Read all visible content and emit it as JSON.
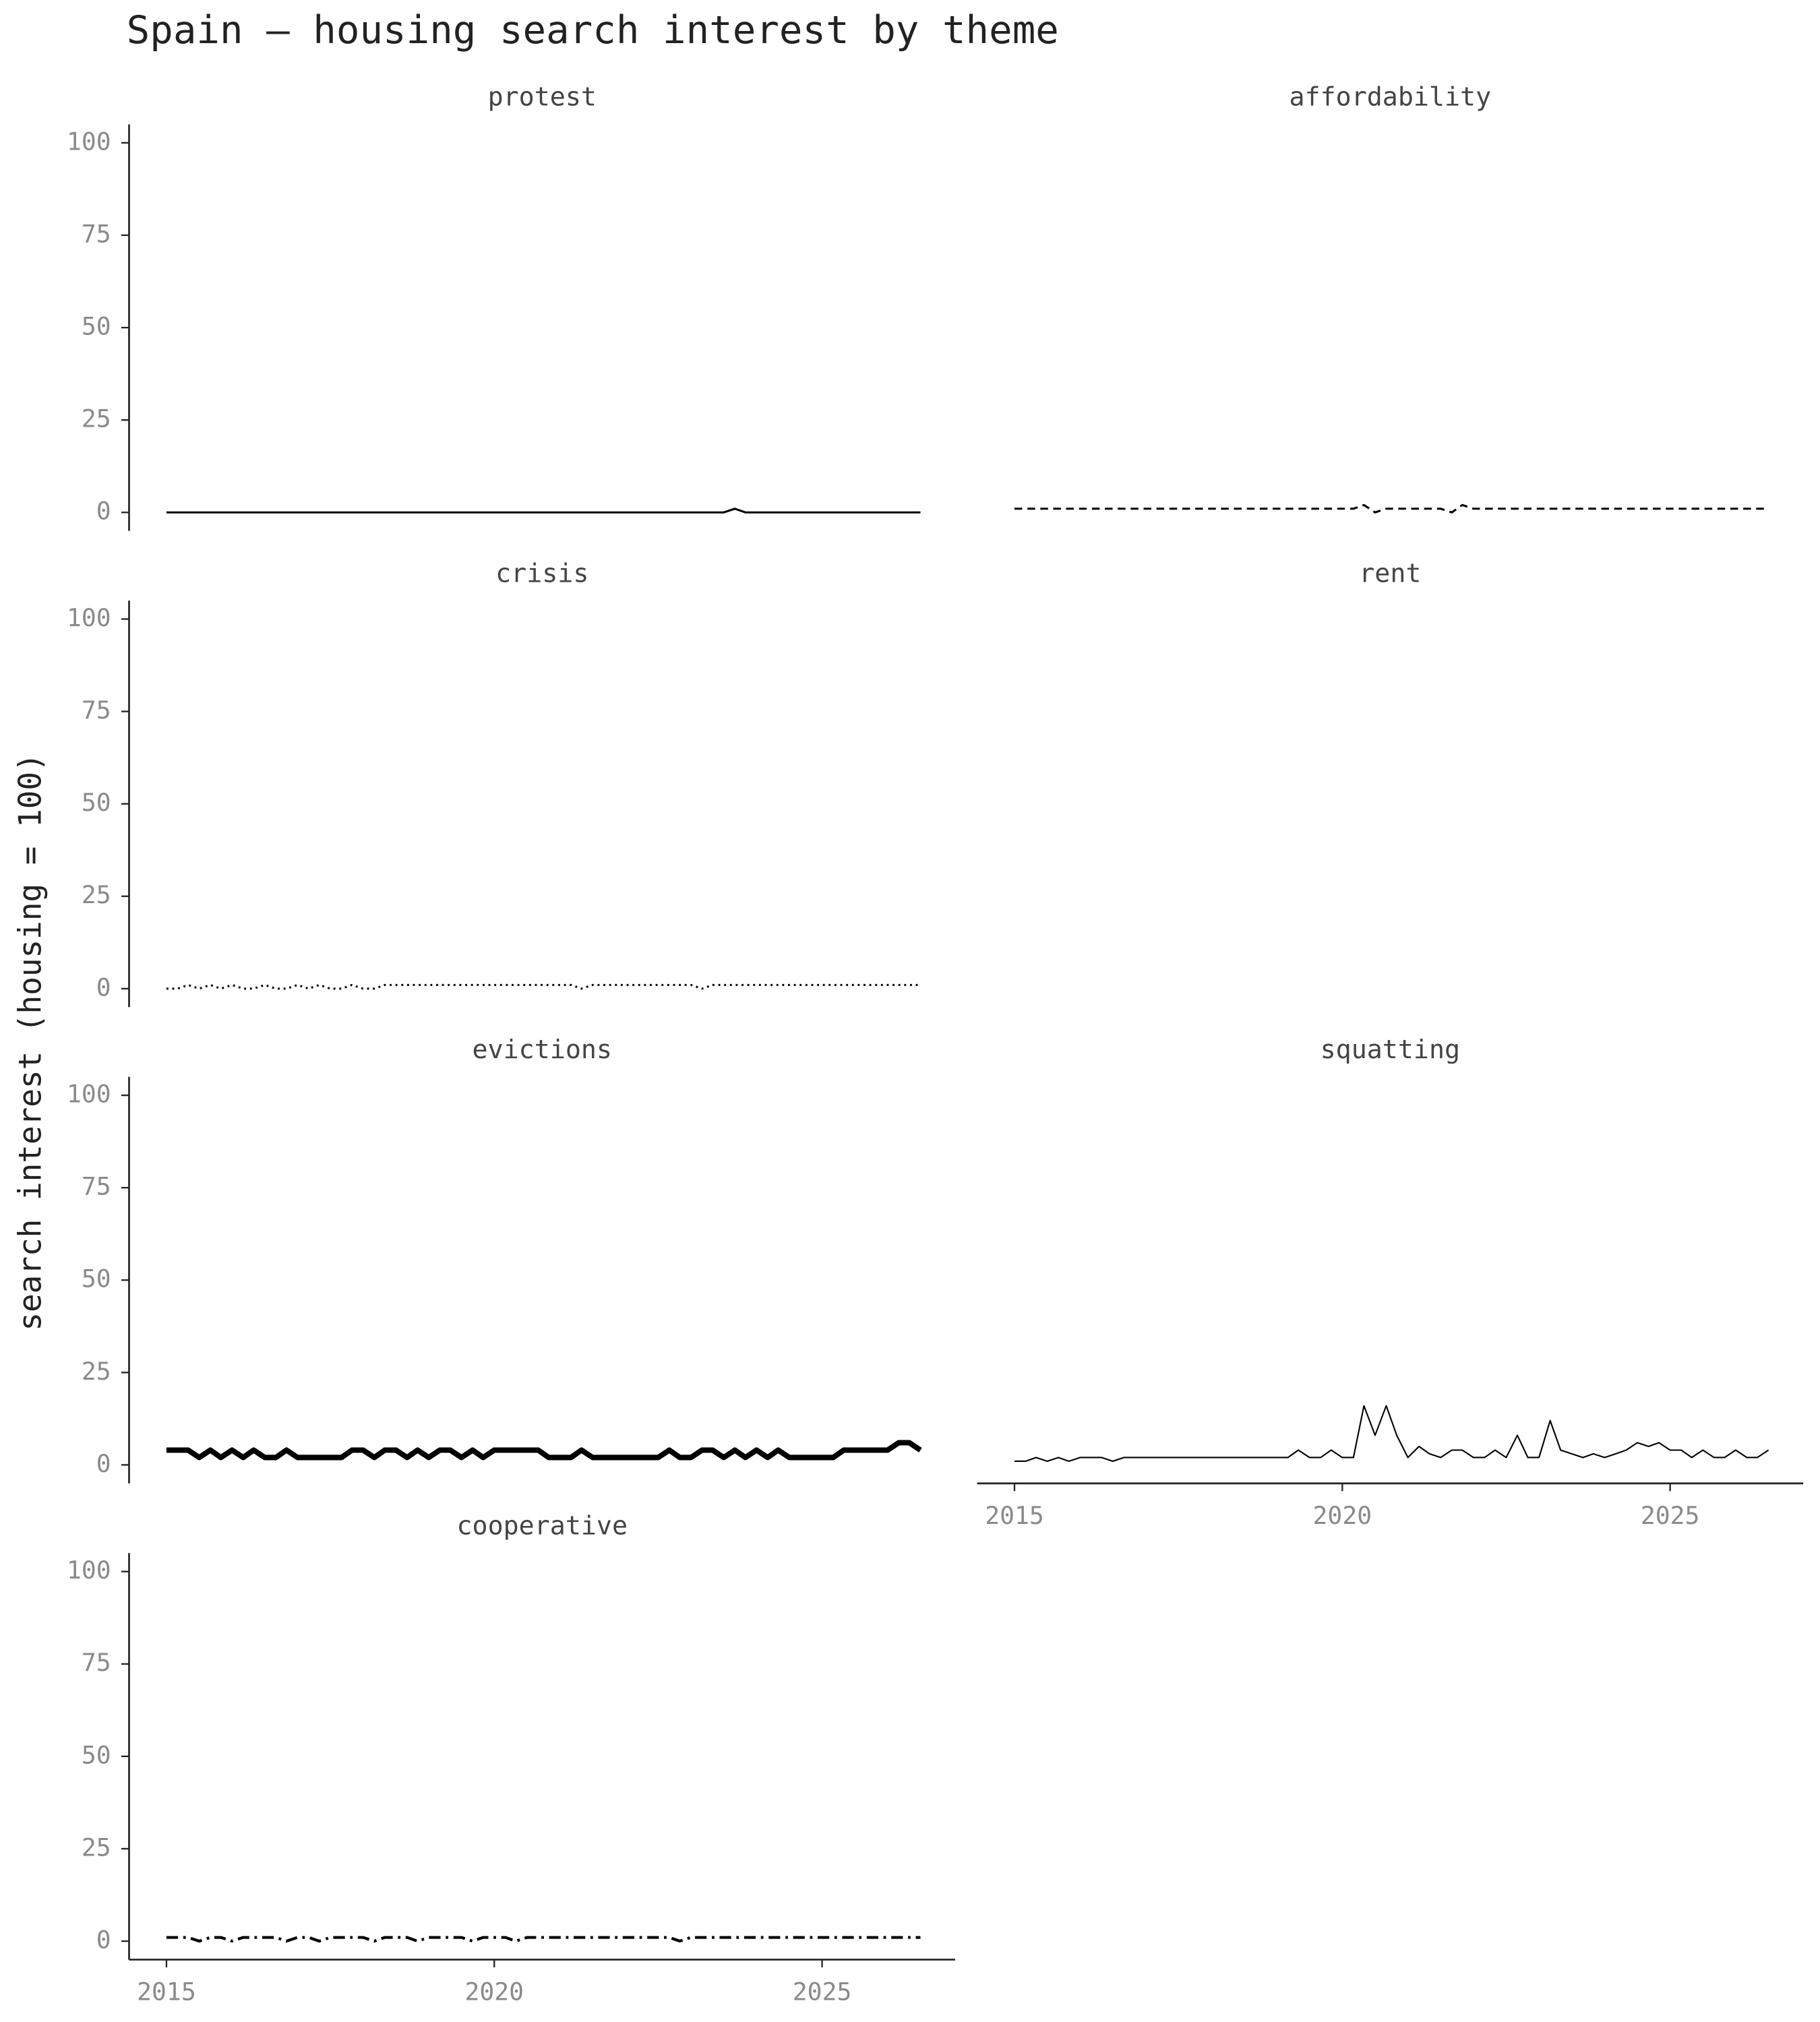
{
  "chart_data": {
    "type": "line",
    "title": "Spain — housing search interest by theme",
    "ylabel": "search interest (housing = 100)",
    "color": "#000000",
    "xlim": [
      2014.43,
      2027.03
    ],
    "xticks": [
      2015,
      2020,
      2025
    ],
    "ylim": [
      -5,
      105
    ],
    "yticks": [
      0,
      25,
      50,
      75,
      100
    ],
    "x": [
      2015,
      2015.17,
      2015.33,
      2015.5,
      2015.67,
      2015.83,
      2016,
      2016.17,
      2016.33,
      2016.5,
      2016.67,
      2016.83,
      2017,
      2017.17,
      2017.33,
      2017.5,
      2017.67,
      2017.83,
      2018,
      2018.17,
      2018.33,
      2018.5,
      2018.67,
      2018.83,
      2019,
      2019.17,
      2019.33,
      2019.5,
      2019.67,
      2019.83,
      2020,
      2020.17,
      2020.33,
      2020.5,
      2020.67,
      2020.83,
      2021,
      2021.17,
      2021.33,
      2021.5,
      2021.67,
      2021.83,
      2022,
      2022.17,
      2022.33,
      2022.5,
      2022.67,
      2022.83,
      2023,
      2023.17,
      2023.33,
      2023.5,
      2023.67,
      2023.83,
      2024,
      2024.17,
      2024.33,
      2024.5,
      2024.67,
      2024.83,
      2025,
      2025.17,
      2025.33,
      2025.5,
      2025.67,
      2025.83,
      2026,
      2026.17,
      2026.33,
      2026.5
    ],
    "series": [
      {
        "name": "protest",
        "linestyle": "solid",
        "linewidth": 1.6,
        "values": [
          0,
          0,
          0,
          0,
          0,
          0,
          0,
          0,
          0,
          0,
          0,
          0,
          0,
          0,
          0,
          0,
          0,
          0,
          0,
          0,
          0,
          0,
          0,
          0,
          0,
          0,
          0,
          0,
          0,
          0,
          0,
          0,
          0,
          0,
          0,
          0,
          0,
          0,
          0,
          0,
          0,
          0,
          0,
          0,
          0,
          0,
          0,
          0,
          0,
          0,
          0,
          0,
          1,
          0,
          0,
          0,
          0,
          0,
          0,
          0,
          0,
          0,
          0,
          0,
          0,
          0,
          0,
          0,
          0,
          0
        ]
      },
      {
        "name": "affordability",
        "linestyle": "dashed",
        "linewidth": 1.6,
        "values": [
          1,
          1,
          1,
          1,
          1,
          1,
          1,
          1,
          1,
          1,
          1,
          1,
          1,
          1,
          1,
          1,
          1,
          1,
          1,
          1,
          1,
          1,
          1,
          1,
          1,
          1,
          1,
          1,
          1,
          1,
          1,
          1,
          2,
          0,
          1,
          1,
          1,
          1,
          1,
          1,
          0,
          2,
          1,
          1,
          1,
          1,
          1,
          1,
          1,
          1,
          1,
          1,
          1,
          1,
          1,
          1,
          1,
          1,
          1,
          1,
          1,
          1,
          1,
          1,
          1,
          1,
          1,
          1,
          1,
          1
        ]
      },
      {
        "name": "crisis",
        "linestyle": "dotted",
        "linewidth": 1.6,
        "values": [
          0,
          0,
          1,
          0,
          1,
          0,
          1,
          0,
          0,
          1,
          0,
          0,
          1,
          0,
          1,
          0,
          0,
          1,
          0,
          0,
          1,
          1,
          1,
          1,
          1,
          1,
          1,
          1,
          1,
          1,
          1,
          1,
          1,
          1,
          1,
          1,
          1,
          1,
          0,
          1,
          1,
          1,
          1,
          1,
          1,
          1,
          1,
          1,
          1,
          0,
          1,
          1,
          1,
          1,
          1,
          1,
          1,
          1,
          1,
          1,
          1,
          1,
          1,
          1,
          1,
          1,
          1,
          1,
          1,
          1
        ]
      },
      {
        "name": "rent",
        "linestyle": "solid",
        "linewidth": 1.6,
        "values": [
          null,
          null,
          null,
          null,
          null,
          null,
          null,
          null,
          null,
          null,
          null,
          null,
          null,
          null,
          null,
          null,
          null,
          null,
          null,
          null,
          null,
          null,
          null,
          null,
          null,
          null,
          null,
          null,
          null,
          null,
          null,
          null,
          null,
          null,
          null,
          null,
          null,
          null,
          null,
          null,
          null,
          null,
          null,
          null,
          null,
          null,
          null,
          null,
          null,
          null,
          null,
          null,
          null,
          null,
          null,
          null,
          null,
          null,
          null,
          null,
          null,
          null,
          null,
          null,
          null,
          null,
          null,
          null,
          null,
          null
        ]
      },
      {
        "name": "evictions",
        "linestyle": "solid",
        "linewidth": 4.2,
        "values": [
          4,
          4,
          4,
          2,
          4,
          2,
          4,
          2,
          4,
          2,
          2,
          4,
          2,
          2,
          2,
          2,
          2,
          4,
          4,
          2,
          4,
          4,
          2,
          4,
          2,
          4,
          4,
          2,
          4,
          2,
          4,
          4,
          4,
          4,
          4,
          2,
          2,
          2,
          4,
          2,
          2,
          2,
          2,
          2,
          2,
          2,
          4,
          2,
          2,
          4,
          4,
          2,
          4,
          2,
          4,
          2,
          4,
          2,
          2,
          2,
          2,
          2,
          4,
          4,
          4,
          4,
          4,
          6,
          6,
          4
        ]
      },
      {
        "name": "squatting",
        "linestyle": "solid",
        "linewidth": 1.1,
        "values": [
          1,
          1,
          2,
          1,
          2,
          1,
          2,
          2,
          2,
          1,
          2,
          2,
          2,
          2,
          2,
          2,
          2,
          2,
          2,
          2,
          2,
          2,
          2,
          2,
          2,
          2,
          4,
          2,
          2,
          4,
          2,
          2,
          16,
          8,
          16,
          8,
          2,
          5,
          3,
          2,
          4,
          4,
          2,
          2,
          4,
          2,
          8,
          2,
          2,
          12,
          4,
          3,
          2,
          3,
          2,
          3,
          4,
          6,
          5,
          6,
          4,
          4,
          2,
          4,
          2,
          2,
          4,
          2,
          2,
          4
        ]
      },
      {
        "name": "cooperative",
        "linestyle": "dashdot",
        "linewidth": 2.2,
        "values": [
          1,
          1,
          1,
          0,
          1,
          1,
          0,
          1,
          1,
          1,
          1,
          0,
          1,
          1,
          0,
          1,
          1,
          1,
          1,
          0,
          1,
          1,
          1,
          0,
          1,
          1,
          1,
          1,
          0,
          1,
          1,
          1,
          0,
          1,
          1,
          1,
          1,
          1,
          1,
          1,
          1,
          1,
          1,
          1,
          1,
          1,
          1,
          0,
          1,
          1,
          1,
          1,
          1,
          1,
          1,
          1,
          1,
          1,
          1,
          1,
          1,
          1,
          1,
          1,
          1,
          1,
          1,
          1,
          1,
          1
        ]
      }
    ]
  }
}
